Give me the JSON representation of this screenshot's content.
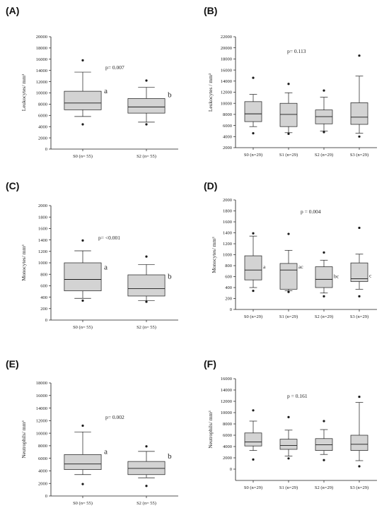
{
  "chart_data": [
    {
      "id": "A",
      "panel_label": "(A)",
      "type": "box",
      "ylabel": "Leukocytes/ mm³",
      "ylim": [
        0,
        20000
      ],
      "yticks": [
        0,
        2000,
        4000,
        6000,
        8000,
        10000,
        12000,
        14000,
        16000,
        18000,
        20000
      ],
      "pvalue": "p= 0.007",
      "categories": [
        "S0 (n= 55)",
        "S2 (n= 55)"
      ],
      "boxes": [
        {
          "whisker_low": 5800,
          "q1": 7000,
          "median": 8200,
          "q3": 10300,
          "whisker_high": 13700,
          "outliers": [
            4400,
            15800
          ],
          "letter": "a"
        },
        {
          "whisker_low": 4800,
          "q1": 6400,
          "median": 7500,
          "q3": 9000,
          "whisker_high": 11000,
          "outliers": [
            4400,
            12200
          ],
          "letter": "b"
        }
      ]
    },
    {
      "id": "B",
      "panel_label": "(B)",
      "type": "box",
      "ylabel": "Leukocytes / mm³",
      "ylim": [
        2000,
        22000
      ],
      "yticks": [
        2000,
        4000,
        6000,
        8000,
        10000,
        12000,
        14000,
        16000,
        18000,
        20000,
        22000
      ],
      "pvalue": "p= 0.113",
      "categories": [
        "S0 (n=29)",
        "S1 (n=29)",
        "S2 (n=29)",
        "S3 (n=29)"
      ],
      "boxes": [
        {
          "whisker_low": 5800,
          "q1": 6700,
          "median": 8100,
          "q3": 10300,
          "whisker_high": 11600,
          "outliers": [
            4600,
            14600
          ],
          "letter": ""
        },
        {
          "whisker_low": 4700,
          "q1": 5800,
          "median": 8000,
          "q3": 10000,
          "whisker_high": 11900,
          "outliers": [
            4500,
            13500
          ],
          "letter": ""
        },
        {
          "whisker_low": 5000,
          "q1": 6300,
          "median": 7600,
          "q3": 8800,
          "whisker_high": 11100,
          "outliers": [
            4800,
            12300
          ],
          "letter": ""
        },
        {
          "whisker_low": 4600,
          "q1": 6200,
          "median": 7500,
          "q3": 10100,
          "whisker_high": 14900,
          "outliers": [
            4000,
            18600
          ],
          "letter": ""
        }
      ]
    },
    {
      "id": "C",
      "panel_label": "(C)",
      "type": "box",
      "ylabel": "Monocytes/ mm³",
      "ylim": [
        0,
        2000
      ],
      "yticks": [
        0,
        200,
        400,
        600,
        800,
        1000,
        1200,
        1400,
        1600,
        1800,
        2000
      ],
      "pvalue": "p= <0.001",
      "categories": [
        "S0 (n= 55)",
        "S2 (n= 55)"
      ],
      "boxes": [
        {
          "whisker_low": 380,
          "q1": 510,
          "median": 710,
          "q3": 1000,
          "whisker_high": 1210,
          "outliers": [
            340,
            1390
          ],
          "letter": "a"
        },
        {
          "whisker_low": 340,
          "q1": 420,
          "median": 550,
          "q3": 790,
          "whisker_high": 970,
          "outliers": [
            320,
            1110
          ],
          "letter": "b"
        }
      ]
    },
    {
      "id": "D",
      "panel_label": "(D)",
      "type": "box",
      "ylabel": "Monocytes/ mm³",
      "ylim": [
        0,
        2000
      ],
      "yticks": [
        0,
        200,
        400,
        600,
        800,
        1000,
        1200,
        1400,
        1600,
        1800,
        2000
      ],
      "pvalue": "p = 0.004",
      "categories": [
        "S0 (n=29)",
        "S1 (n=29)",
        "S2 (n=29)",
        "S3 (n=29)"
      ],
      "boxes": [
        {
          "whisker_low": 400,
          "q1": 540,
          "median": 720,
          "q3": 980,
          "whisker_high": 1340,
          "outliers": [
            340,
            1390
          ],
          "letter": "a"
        },
        {
          "whisker_low": 340,
          "q1": 370,
          "median": 720,
          "q3": 840,
          "whisker_high": 1080,
          "outliers": [
            320,
            1380
          ],
          "letter": "ac"
        },
        {
          "whisker_low": 300,
          "q1": 400,
          "median": 550,
          "q3": 780,
          "whisker_high": 900,
          "outliers": [
            240,
            1040
          ],
          "letter": "bc"
        },
        {
          "whisker_low": 370,
          "q1": 510,
          "median": 560,
          "q3": 850,
          "whisker_high": 1010,
          "outliers": [
            240,
            1490
          ],
          "letter": "c"
        }
      ]
    },
    {
      "id": "E",
      "panel_label": "(E)",
      "type": "box",
      "ylabel": "Neutrophils/ mm³",
      "ylim": [
        0,
        18000
      ],
      "yticks": [
        0,
        2000,
        4000,
        6000,
        8000,
        10000,
        12000,
        14000,
        16000,
        18000
      ],
      "pvalue": "p= 0.002",
      "categories": [
        "S0 (n= 55)",
        "S2 (n= 55)"
      ],
      "boxes": [
        {
          "whisker_low": 3400,
          "q1": 4200,
          "median": 5100,
          "q3": 6600,
          "whisker_high": 10200,
          "outliers": [
            1900,
            11200
          ],
          "letter": "a"
        },
        {
          "whisker_low": 2900,
          "q1": 3400,
          "median": 4400,
          "q3": 5500,
          "whisker_high": 7100,
          "outliers": [
            1600,
            7900
          ],
          "letter": "b"
        }
      ]
    },
    {
      "id": "F",
      "panel_label": "(F)",
      "type": "box",
      "ylabel": "Neutrophils/ mm³",
      "ylim": [
        -2000,
        16000
      ],
      "yticks": [
        0,
        2000,
        4000,
        6000,
        8000,
        10000,
        12000,
        14000,
        16000
      ],
      "pvalue": "p = 0.161",
      "categories": [
        "S0 (n=29)",
        "S1 (n=29)",
        "S2 (n=29)",
        "S3 (n=29)"
      ],
      "boxes": [
        {
          "whisker_low": 3300,
          "q1": 4100,
          "median": 4800,
          "q3": 6400,
          "whisker_high": 8500,
          "outliers": [
            1700,
            10400
          ],
          "letter": ""
        },
        {
          "whisker_low": 2300,
          "q1": 3500,
          "median": 4200,
          "q3": 5300,
          "whisker_high": 6900,
          "outliers": [
            1900,
            9200
          ],
          "letter": ""
        },
        {
          "whisker_low": 2600,
          "q1": 3300,
          "median": 4300,
          "q3": 5400,
          "whisker_high": 7000,
          "outliers": [
            1600,
            8500
          ],
          "letter": ""
        },
        {
          "whisker_low": 1500,
          "q1": 3300,
          "median": 4400,
          "q3": 6000,
          "whisker_high": 11800,
          "outliers": [
            500,
            12800
          ],
          "letter": ""
        }
      ]
    }
  ],
  "colors": {
    "box_fill": "#d3d3d3",
    "line": "#1a1a1a"
  }
}
